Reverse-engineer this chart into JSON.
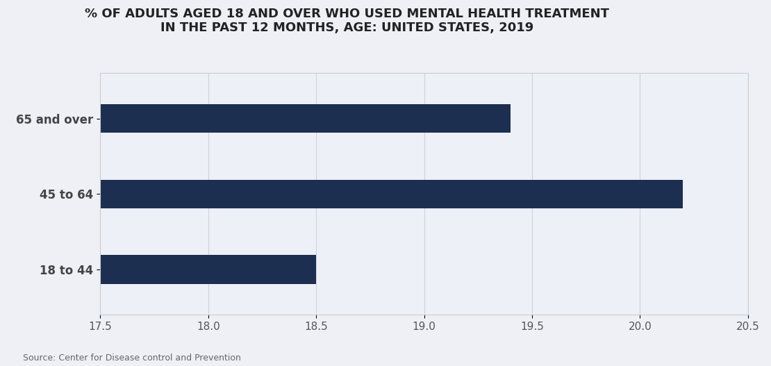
{
  "title": "% OF ADULTS AGED 18 AND OVER WHO USED MENTAL HEALTH TREATMENT\nIN THE PAST 12 MONTHS, AGE: UNITED STATES, 2019",
  "categories": [
    "18 to 44",
    "45 to 64",
    "65 and over"
  ],
  "values": [
    18.5,
    20.2,
    19.4
  ],
  "bar_color": "#1c2f50",
  "xlim": [
    17.5,
    20.5
  ],
  "xticks": [
    17.5,
    18.0,
    18.5,
    19.0,
    19.5,
    20.0,
    20.5
  ],
  "background_color": "#eef0f5",
  "plot_bg_color": "#eef0f8",
  "title_fontsize": 13,
  "tick_fontsize": 11,
  "label_fontsize": 12,
  "source_text": "Source: Center for Disease control and Prevention",
  "bar_height": 0.38
}
